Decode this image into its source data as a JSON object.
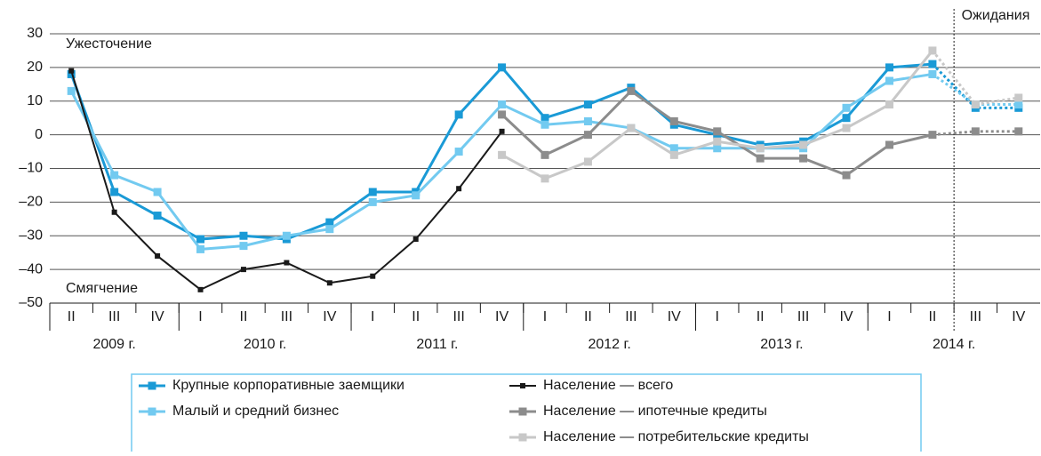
{
  "chart_data": {
    "type": "line",
    "annotations": {
      "top": "Ужесточение",
      "bottom": "Смягчение",
      "expectations": "Ожидания"
    },
    "categories": [
      "II",
      "III",
      "IV",
      "I",
      "II",
      "III",
      "IV",
      "I",
      "II",
      "III",
      "IV",
      "I",
      "II",
      "III",
      "IV",
      "I",
      "II",
      "III",
      "IV",
      "I",
      "II",
      "III",
      "IV"
    ],
    "groups": [
      {
        "label": "2009 г.",
        "span": 3
      },
      {
        "label": "2010 г.",
        "span": 4
      },
      {
        "label": "2011 г.",
        "span": 4
      },
      {
        "label": "2012 г.",
        "span": 4
      },
      {
        "label": "2013 г.",
        "span": 4
      },
      {
        "label": "2014 г.",
        "span": 4
      }
    ],
    "forecast_start": 21,
    "ylim": [
      -50,
      30
    ],
    "yticks": [
      {
        "value": -50,
        "label": "–50"
      },
      {
        "value": -40,
        "label": "–40"
      },
      {
        "value": -30,
        "label": "–30"
      },
      {
        "value": -20,
        "label": "–20"
      },
      {
        "value": -10,
        "label": "–10"
      },
      0,
      10,
      20,
      30
    ],
    "grid": true,
    "series": [
      {
        "name": "Крупные корпоративные заемщики",
        "color": "#1a9ad6",
        "values": [
          18,
          -17,
          -24,
          -31,
          -30,
          -31,
          -26,
          -17,
          -17,
          6,
          20,
          5,
          9,
          14,
          3,
          0,
          -3,
          -2,
          5,
          20,
          21,
          8,
          8
        ]
      },
      {
        "name": "Малый и средний  бизнес",
        "color": "#72caf0",
        "values": [
          13,
          -12,
          -17,
          -34,
          -33,
          -30,
          -28,
          -20,
          -18,
          -5,
          9,
          3,
          4,
          2,
          -4,
          -4,
          -4,
          -4,
          8,
          16,
          18,
          9,
          9
        ]
      },
      {
        "name": "Население — всего",
        "color": "#1a1a1a",
        "values": [
          19,
          -23,
          -36,
          -46,
          -40,
          -38,
          -44,
          -42,
          -31,
          -16,
          1,
          null,
          null,
          null,
          null,
          null,
          null,
          null,
          null,
          null,
          null,
          null,
          null
        ]
      },
      {
        "name": "Население — ипотечные кредиты",
        "color": "#8c8c8c",
        "values": [
          null,
          null,
          null,
          null,
          null,
          null,
          null,
          null,
          null,
          null,
          6,
          -6,
          0,
          13,
          4,
          1,
          -7,
          -7,
          -12,
          -3,
          0,
          1,
          1
        ]
      },
      {
        "name": "Население — потребительские кредиты",
        "color": "#c8c8c8",
        "values": [
          null,
          null,
          null,
          null,
          null,
          null,
          null,
          null,
          null,
          null,
          -6,
          -13,
          -8,
          2,
          -6,
          -2,
          -4,
          -3,
          2,
          9,
          25,
          9,
          11
        ]
      }
    ]
  }
}
